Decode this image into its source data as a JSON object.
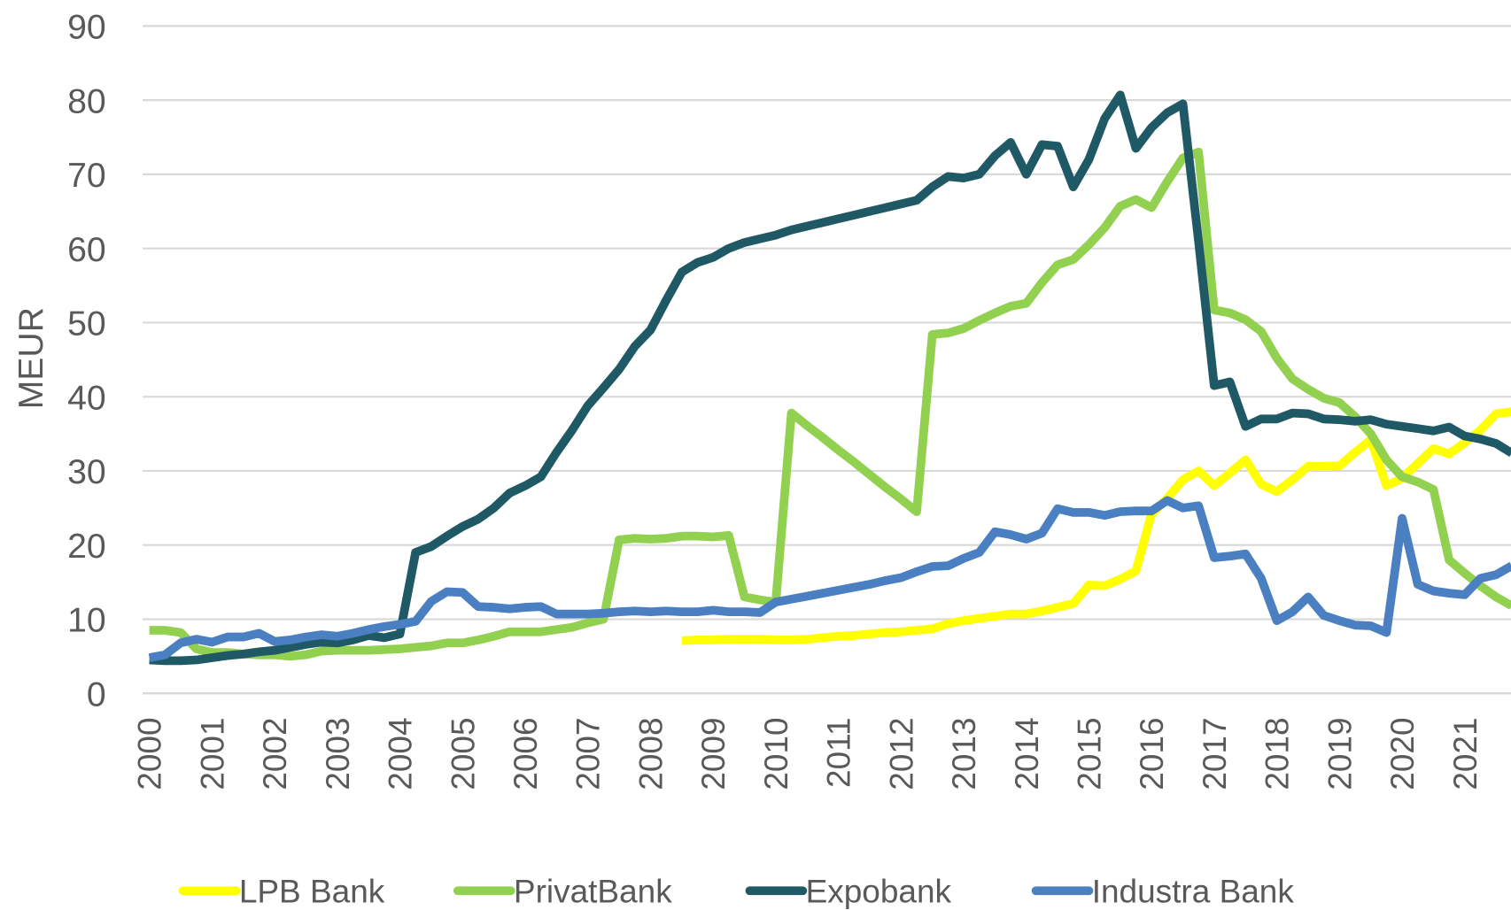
{
  "chart_data": {
    "type": "line",
    "y_label": "MEUR",
    "categories": [
      "2000",
      null,
      null,
      null,
      "2001",
      null,
      null,
      null,
      "2002",
      null,
      null,
      null,
      "2003",
      null,
      null,
      null,
      "2004",
      null,
      null,
      null,
      "2005",
      null,
      null,
      null,
      "2006",
      null,
      null,
      null,
      "2007",
      null,
      null,
      null,
      "2008",
      null,
      null,
      null,
      "2009",
      null,
      null,
      null,
      "2010",
      null,
      null,
      null,
      "2011",
      null,
      null,
      null,
      "2012",
      null,
      null,
      null,
      "2013",
      null,
      null,
      null,
      "2014",
      null,
      null,
      null,
      "2015",
      null,
      null,
      null,
      "2016",
      null,
      null,
      null,
      "2017",
      null,
      null,
      null,
      "2018",
      null,
      null,
      null,
      "2019",
      null,
      null,
      null,
      "2020",
      null,
      null,
      null,
      "2021",
      null,
      null,
      null
    ],
    "ylim": [
      0,
      90
    ],
    "yticks": [
      0,
      10,
      20,
      30,
      40,
      50,
      60,
      70,
      80,
      90
    ],
    "grid": true,
    "legend": "bottom",
    "series": [
      {
        "name": "LPB Bank",
        "color": "#ffff00",
        "values": [
          null,
          null,
          null,
          null,
          null,
          null,
          null,
          null,
          null,
          null,
          null,
          null,
          null,
          null,
          null,
          null,
          null,
          null,
          null,
          null,
          null,
          null,
          null,
          null,
          null,
          null,
          null,
          null,
          null,
          null,
          null,
          null,
          null,
          null,
          7.1,
          7.2,
          7.2,
          7.3,
          7.3,
          7.3,
          7.2,
          7.2,
          7.3,
          7.5,
          7.7,
          7.8,
          8,
          8.2,
          8.3,
          8.5,
          8.7,
          9.4,
          9.8,
          10.1,
          10.4,
          10.7,
          10.7,
          11.1,
          11.6,
          12.1,
          14.6,
          14.5,
          15.4,
          16.5,
          24.2,
          26.3,
          28.8,
          30,
          28,
          29.7,
          31.5,
          28.2,
          27.2,
          28.8,
          30.6,
          30.6,
          30.7,
          32.5,
          34.2,
          28,
          29,
          31,
          33,
          32.3,
          33.8,
          35.5,
          37.7,
          38
        ]
      },
      {
        "name": "PrivatBank",
        "color": "#92d050",
        "values": [
          8.5,
          8.5,
          8.2,
          6,
          5.5,
          5.5,
          5.3,
          5.2,
          5.2,
          5,
          5.2,
          5.7,
          5.8,
          5.8,
          5.8,
          5.9,
          6,
          6.2,
          6.4,
          6.8,
          6.8,
          7.2,
          7.7,
          8.3,
          8.3,
          8.3,
          8.6,
          8.9,
          9.5,
          10,
          20.7,
          20.9,
          20.8,
          20.9,
          21.2,
          21.2,
          21.1,
          21.3,
          13,
          12.6,
          12.3,
          37.8,
          36.1,
          34.5,
          32.8,
          31.2,
          29.5,
          27.8,
          26.2,
          24.5,
          48.4,
          48.6,
          49.2,
          50.3,
          51.3,
          52.2,
          52.6,
          55.4,
          57.8,
          58.5,
          60.5,
          62.8,
          65.7,
          66.6,
          65.5,
          69,
          72.2,
          73,
          51.7,
          51.3,
          50.4,
          48.8,
          45.2,
          42.4,
          41,
          39.8,
          39.2,
          37.3,
          35,
          31.5,
          29.2,
          28.5,
          27.5,
          18,
          16.2,
          14.5,
          13,
          11.8
        ]
      },
      {
        "name": "Expobank",
        "color": "#1f5966",
        "values": [
          4.5,
          4.4,
          4.4,
          4.5,
          4.8,
          5.1,
          5.3,
          5.6,
          5.8,
          6.2,
          6.6,
          6.9,
          6.8,
          7.2,
          7.8,
          7.5,
          8.0,
          19,
          19.8,
          21.2,
          22.5,
          23.5,
          25,
          27,
          28,
          29.2,
          32.5,
          35.5,
          38.8,
          41.2,
          43.7,
          46.8,
          49,
          53,
          56.8,
          58.1,
          58.8,
          60,
          60.8,
          61.3,
          61.8,
          62.5,
          63,
          63.5,
          64,
          64.5,
          65,
          65.5,
          66,
          66.5,
          68.3,
          69.7,
          69.5,
          70,
          72.5,
          74.3,
          70,
          74,
          73.8,
          68.3,
          72,
          77.5,
          80.7,
          73.5,
          76.3,
          78.3,
          79.5,
          61,
          41.5,
          42,
          36,
          37,
          37,
          37.8,
          37.7,
          37,
          36.9,
          36.7,
          36.9,
          36.3,
          36,
          35.7,
          35.4,
          35.9,
          34.7,
          34.3,
          33.7,
          32.4
        ]
      },
      {
        "name": "Industra Bank",
        "color": "#4a7fc1",
        "values": [
          4.8,
          5.2,
          6.8,
          7.3,
          6.9,
          7.6,
          7.6,
          8.1,
          7,
          7.2,
          7.6,
          7.9,
          7.7,
          8.1,
          8.6,
          9,
          9.3,
          9.7,
          12.4,
          13.7,
          13.6,
          11.7,
          11.6,
          11.4,
          11.6,
          11.7,
          10.7,
          10.7,
          10.7,
          10.8,
          11,
          11.1,
          11,
          11.1,
          11,
          11,
          11.2,
          11,
          11,
          10.9,
          12.3,
          12.7,
          13.1,
          13.5,
          13.9,
          14.3,
          14.7,
          15.2,
          15.6,
          16.4,
          17.1,
          17.2,
          18.2,
          19,
          21.8,
          21.4,
          20.8,
          21.6,
          24.9,
          24.4,
          24.4,
          24,
          24.5,
          24.6,
          24.6,
          26,
          25,
          25.3,
          18.3,
          18.5,
          18.8,
          15.5,
          9.8,
          11,
          13,
          10.5,
          9.8,
          9.2,
          9.1,
          8.2,
          23.6,
          14.7,
          13.8,
          13.5,
          13.3,
          15.5,
          16,
          17.2
        ]
      }
    ]
  }
}
